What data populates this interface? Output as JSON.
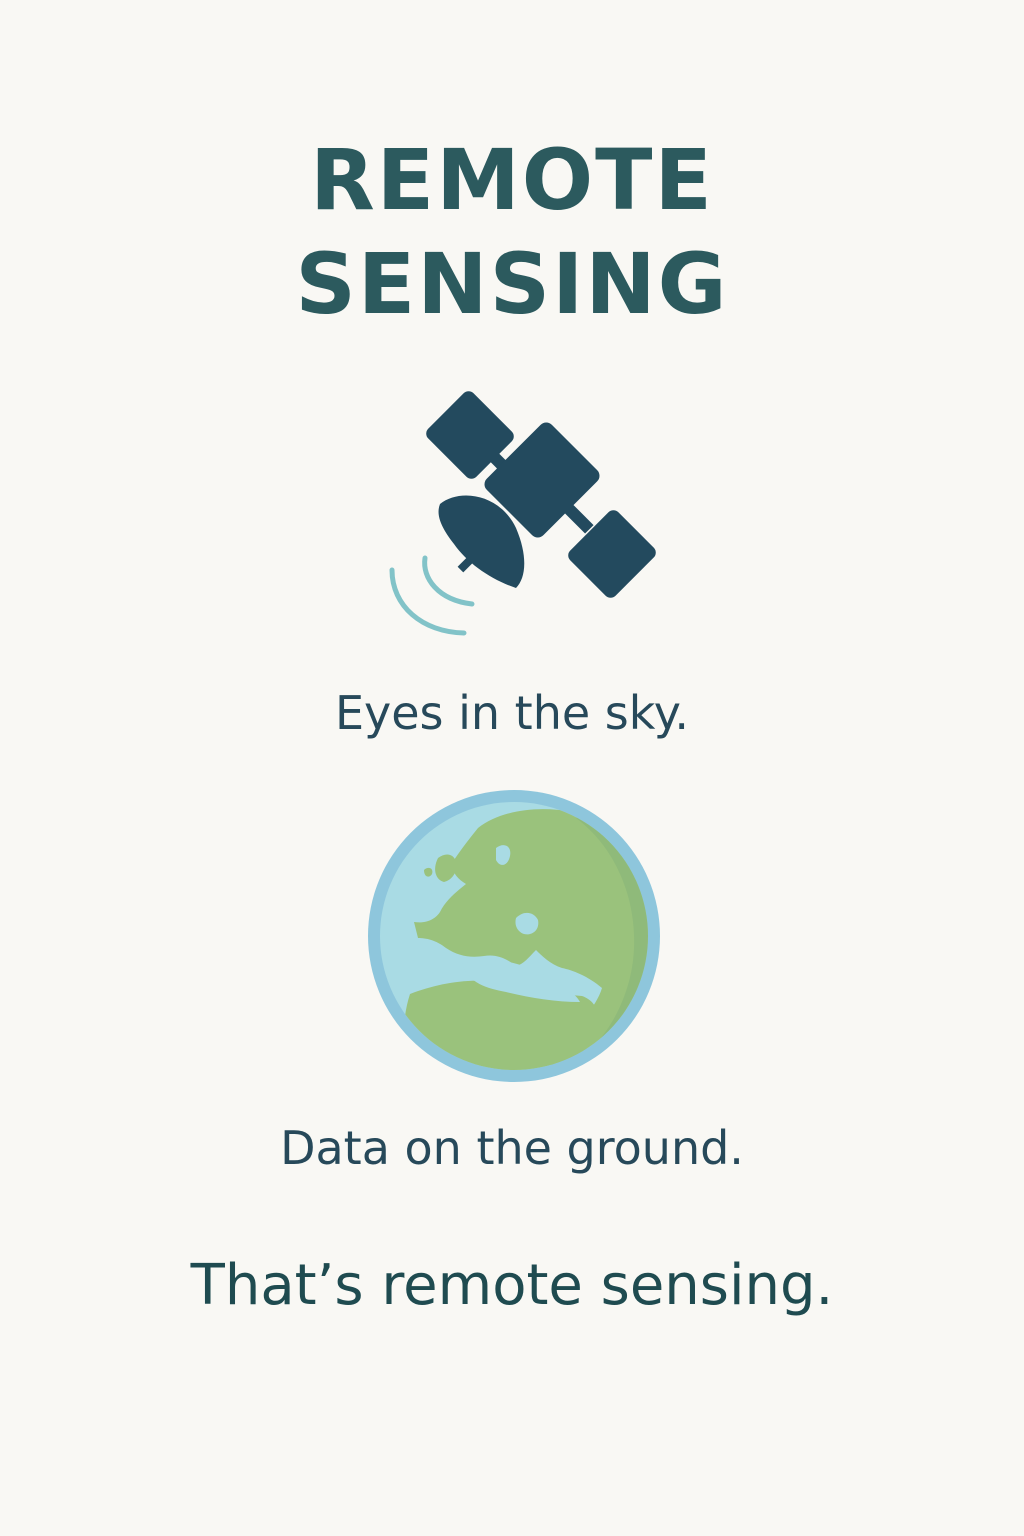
{
  "title": {
    "line1": "REMOTE",
    "line2": "SENSING"
  },
  "icons": {
    "satellite": "satellite-icon",
    "signal": "signal-waves-icon",
    "globe": "earth-globe-icon"
  },
  "taglines": {
    "sky": "Eyes in the sky.",
    "ground": "Data on the ground."
  },
  "closing": "That’s remote sensing.",
  "colors": {
    "background": "#f9f8f4",
    "title": "#2c5a5e",
    "satellite": "#234a5e",
    "signal": "#82c3c8",
    "ocean": "#a9dbe4",
    "globe_rim": "#8ec6dc",
    "land": "#9ac27c",
    "land_shade": "#86b479"
  }
}
